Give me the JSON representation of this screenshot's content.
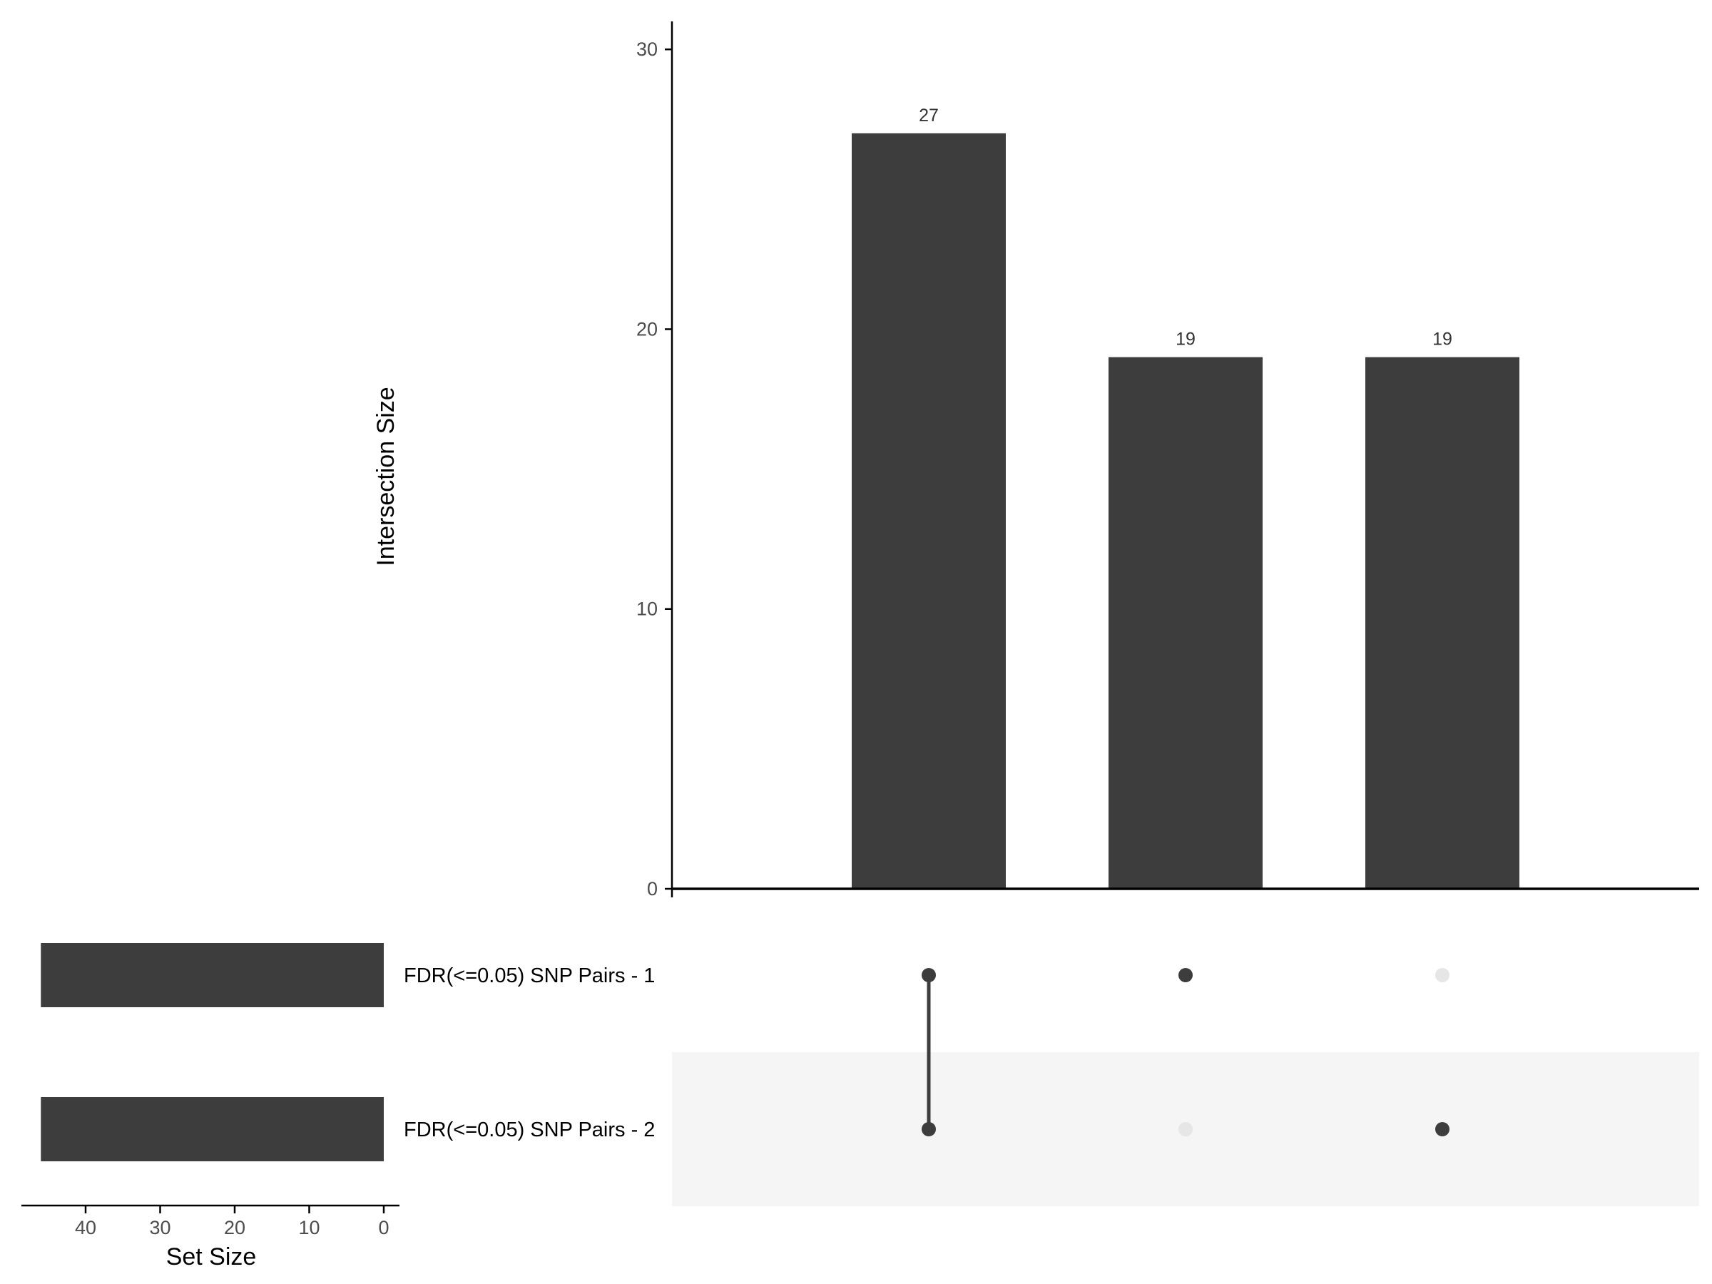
{
  "chart_data": {
    "type": "bar",
    "subtype": "upset",
    "intersections": {
      "ylabel": "Intersection Size",
      "ylim": [
        0,
        31
      ],
      "yticks": [
        0,
        10,
        20,
        30
      ],
      "values": [
        27,
        19,
        19
      ],
      "labels": [
        "27",
        "19",
        "19"
      ],
      "members": [
        [
          0,
          1
        ],
        [
          0
        ],
        [
          1
        ]
      ]
    },
    "sets": {
      "names": [
        "FDR(<=0.05) SNP Pairs - 1",
        "FDR(<=0.05) SNP Pairs - 2"
      ],
      "sizes": [
        46,
        46
      ],
      "xlabel": "Set Size",
      "xlim": [
        0,
        48
      ],
      "xticks": [
        40,
        30,
        20,
        10,
        0
      ]
    },
    "colors": {
      "bar": "#3d3d3d",
      "dot_active": "#3d3d3d",
      "dot_inactive": "#e6e6e6",
      "stripe": "#f5f5f5",
      "axis": "#000000"
    },
    "grid": false
  }
}
